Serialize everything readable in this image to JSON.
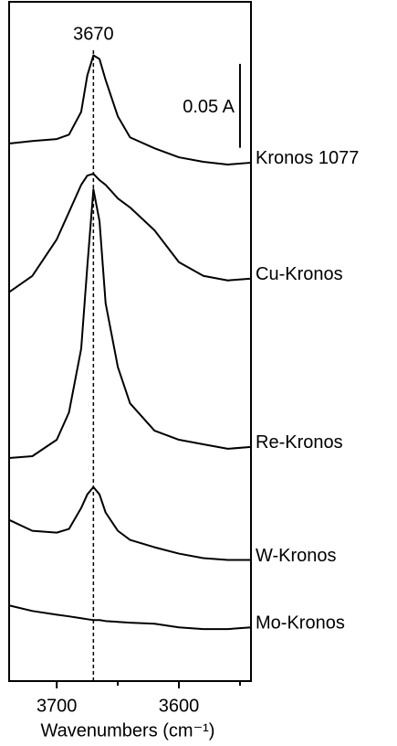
{
  "chart_data": {
    "type": "line",
    "xlabel": "Wavenumbers (cm⁻¹)",
    "xlim": [
      3739,
      3541
    ],
    "xticks": [
      3700,
      3600
    ],
    "xminor_ticks": [
      3650,
      3550
    ],
    "ylim": [
      0,
      0.405
    ],
    "x": [
      3739,
      3720,
      3700,
      3690,
      3680,
      3675,
      3670,
      3665,
      3660,
      3650,
      3640,
      3620,
      3600,
      3580,
      3560,
      3541
    ],
    "series": [
      {
        "name": "Kronos 1077",
        "color": "#000000",
        "values": [
          0.3205,
          0.322,
          0.3232,
          0.3258,
          0.3394,
          0.3611,
          0.3731,
          0.3709,
          0.3584,
          0.3367,
          0.3242,
          0.3177,
          0.3123,
          0.3096,
          0.308,
          0.3091
        ]
      },
      {
        "name": "Cu-Kronos",
        "color": "#000000",
        "values": [
          0.2319,
          0.2416,
          0.2634,
          0.2796,
          0.2959,
          0.3014,
          0.3025,
          0.2987,
          0.2959,
          0.2878,
          0.2824,
          0.2688,
          0.2498,
          0.2416,
          0.2389,
          0.24
        ]
      },
      {
        "name": "Re-Kronos",
        "color": "#000000",
        "values": [
          0.133,
          0.1341,
          0.1439,
          0.1602,
          0.1982,
          0.2471,
          0.2932,
          0.2742,
          0.2253,
          0.1873,
          0.1656,
          0.1493,
          0.1439,
          0.1412,
          0.1385,
          0.1396
        ]
      },
      {
        "name": "W-Kronos",
        "color": "#000000",
        "values": [
          0.0961,
          0.0896,
          0.0885,
          0.0907,
          0.1032,
          0.1113,
          0.1157,
          0.1113,
          0.1005,
          0.0896,
          0.0842,
          0.0798,
          0.076,
          0.0733,
          0.0722,
          0.0722
        ]
      },
      {
        "name": "Mo-Kronos",
        "color": "#000000",
        "values": [
          0.0451,
          0.0418,
          0.0396,
          0.0386,
          0.0375,
          0.0369,
          0.0364,
          0.0364,
          0.0358,
          0.0353,
          0.0348,
          0.0342,
          0.032,
          0.031,
          0.031,
          0.032
        ]
      }
    ],
    "peak_annotation": {
      "label": "3670",
      "x": 3670
    },
    "scale_bar": {
      "label": "0.05 A",
      "value": 0.05,
      "x": 3550,
      "base": 0.318
    }
  }
}
